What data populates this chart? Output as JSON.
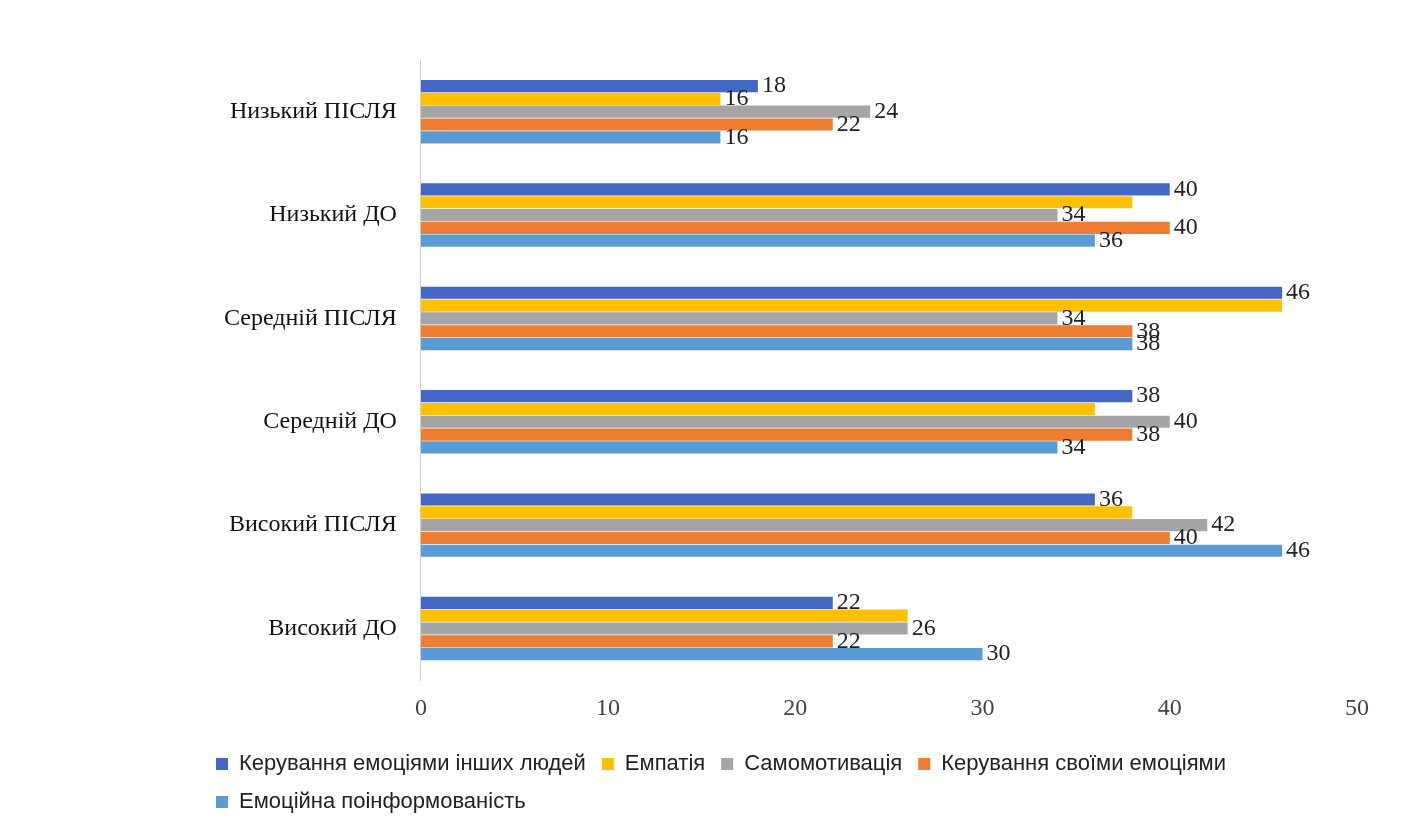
{
  "chart_data": {
    "type": "bar",
    "orientation": "horizontal",
    "categories": [
      "Низький ПІСЛЯ",
      "Низький ДО",
      "Середній ПІСЛЯ",
      "Середній ДО",
      "Високий ПІСЛЯ",
      "Високий ДО"
    ],
    "series": [
      {
        "name": "Керування емоціями інших людей",
        "color": "#4466c4",
        "values": [
          18,
          40,
          46,
          38,
          36,
          22
        ],
        "value_labels": [
          "18",
          "40",
          "46",
          "38",
          "36",
          "22"
        ]
      },
      {
        "name": "Емпатія",
        "color": "#ffc000",
        "values": [
          16,
          38,
          46,
          36,
          38,
          26
        ],
        "value_labels": [
          "16",
          null,
          null,
          null,
          null,
          null
        ]
      },
      {
        "name": "Самомотивація",
        "color": "#a5a5a5",
        "values": [
          24,
          34,
          34,
          40,
          42,
          26
        ],
        "value_labels": [
          "24",
          "34",
          "34",
          "40",
          "42",
          "26"
        ]
      },
      {
        "name": "Керування своїми емоціями",
        "color": "#ed7d31",
        "values": [
          22,
          40,
          38,
          38,
          40,
          22
        ],
        "value_labels": [
          "22",
          "40",
          "38",
          "38",
          "40",
          "22"
        ]
      },
      {
        "name": "Емоційна поінформованість",
        "color": "#5b9bd5",
        "values": [
          16,
          36,
          38,
          34,
          46,
          30
        ],
        "value_labels": [
          "16",
          "36",
          "38",
          "34",
          "46",
          "30"
        ]
      }
    ],
    "xlim": [
      0,
      50
    ],
    "xticks": [
      0,
      10,
      20,
      30,
      40,
      50
    ],
    "grid": false,
    "legend": "bottom"
  }
}
